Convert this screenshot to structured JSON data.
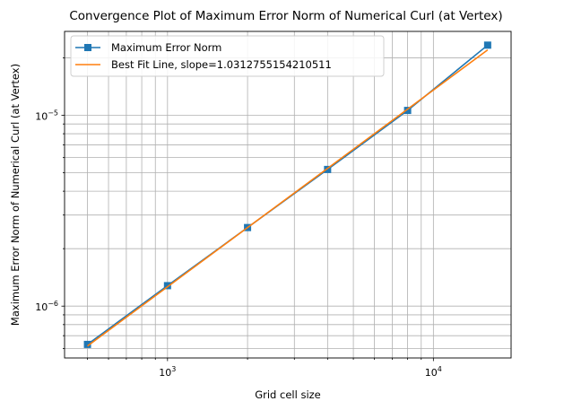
{
  "chart_data": {
    "type": "line",
    "title": "Convergence Plot of Maximum Error Norm of Numerical Curl (at Vertex)",
    "xlabel": "Grid cell size",
    "ylabel": "Maximum Error Norm of Numerical Curl (at Vertex)",
    "xscale": "log",
    "yscale": "log",
    "xlim": [
      410,
      19600
    ],
    "ylim": [
      5.35e-07,
      2.75e-05
    ],
    "grid": "major and minor, both axes",
    "legend_position": "top-left",
    "x_ticks": [
      {
        "value": 1000,
        "base": "10",
        "exp": "3"
      },
      {
        "value": 10000,
        "base": "10",
        "exp": "4"
      }
    ],
    "y_ticks": [
      {
        "value": 1e-06,
        "base": "10",
        "exp": "−6"
      },
      {
        "value": 1e-05,
        "base": "10",
        "exp": "−5"
      }
    ],
    "series": [
      {
        "name": "Maximum Error Norm",
        "color": "#1f77b4",
        "marker": "square",
        "x": [
          500,
          1000,
          2000,
          4000,
          8000,
          16000
        ],
        "y": [
          6.3e-07,
          1.28e-06,
          2.58e-06,
          5.2e-06,
          1.06e-05,
          2.33e-05
        ]
      },
      {
        "name": "Best Fit Line, slope=1.0312755154210511",
        "color": "#ff7f0e",
        "marker": "none",
        "x": [
          500,
          16000
        ],
        "y": [
          6.18e-07,
          2.2e-05
        ]
      }
    ]
  }
}
